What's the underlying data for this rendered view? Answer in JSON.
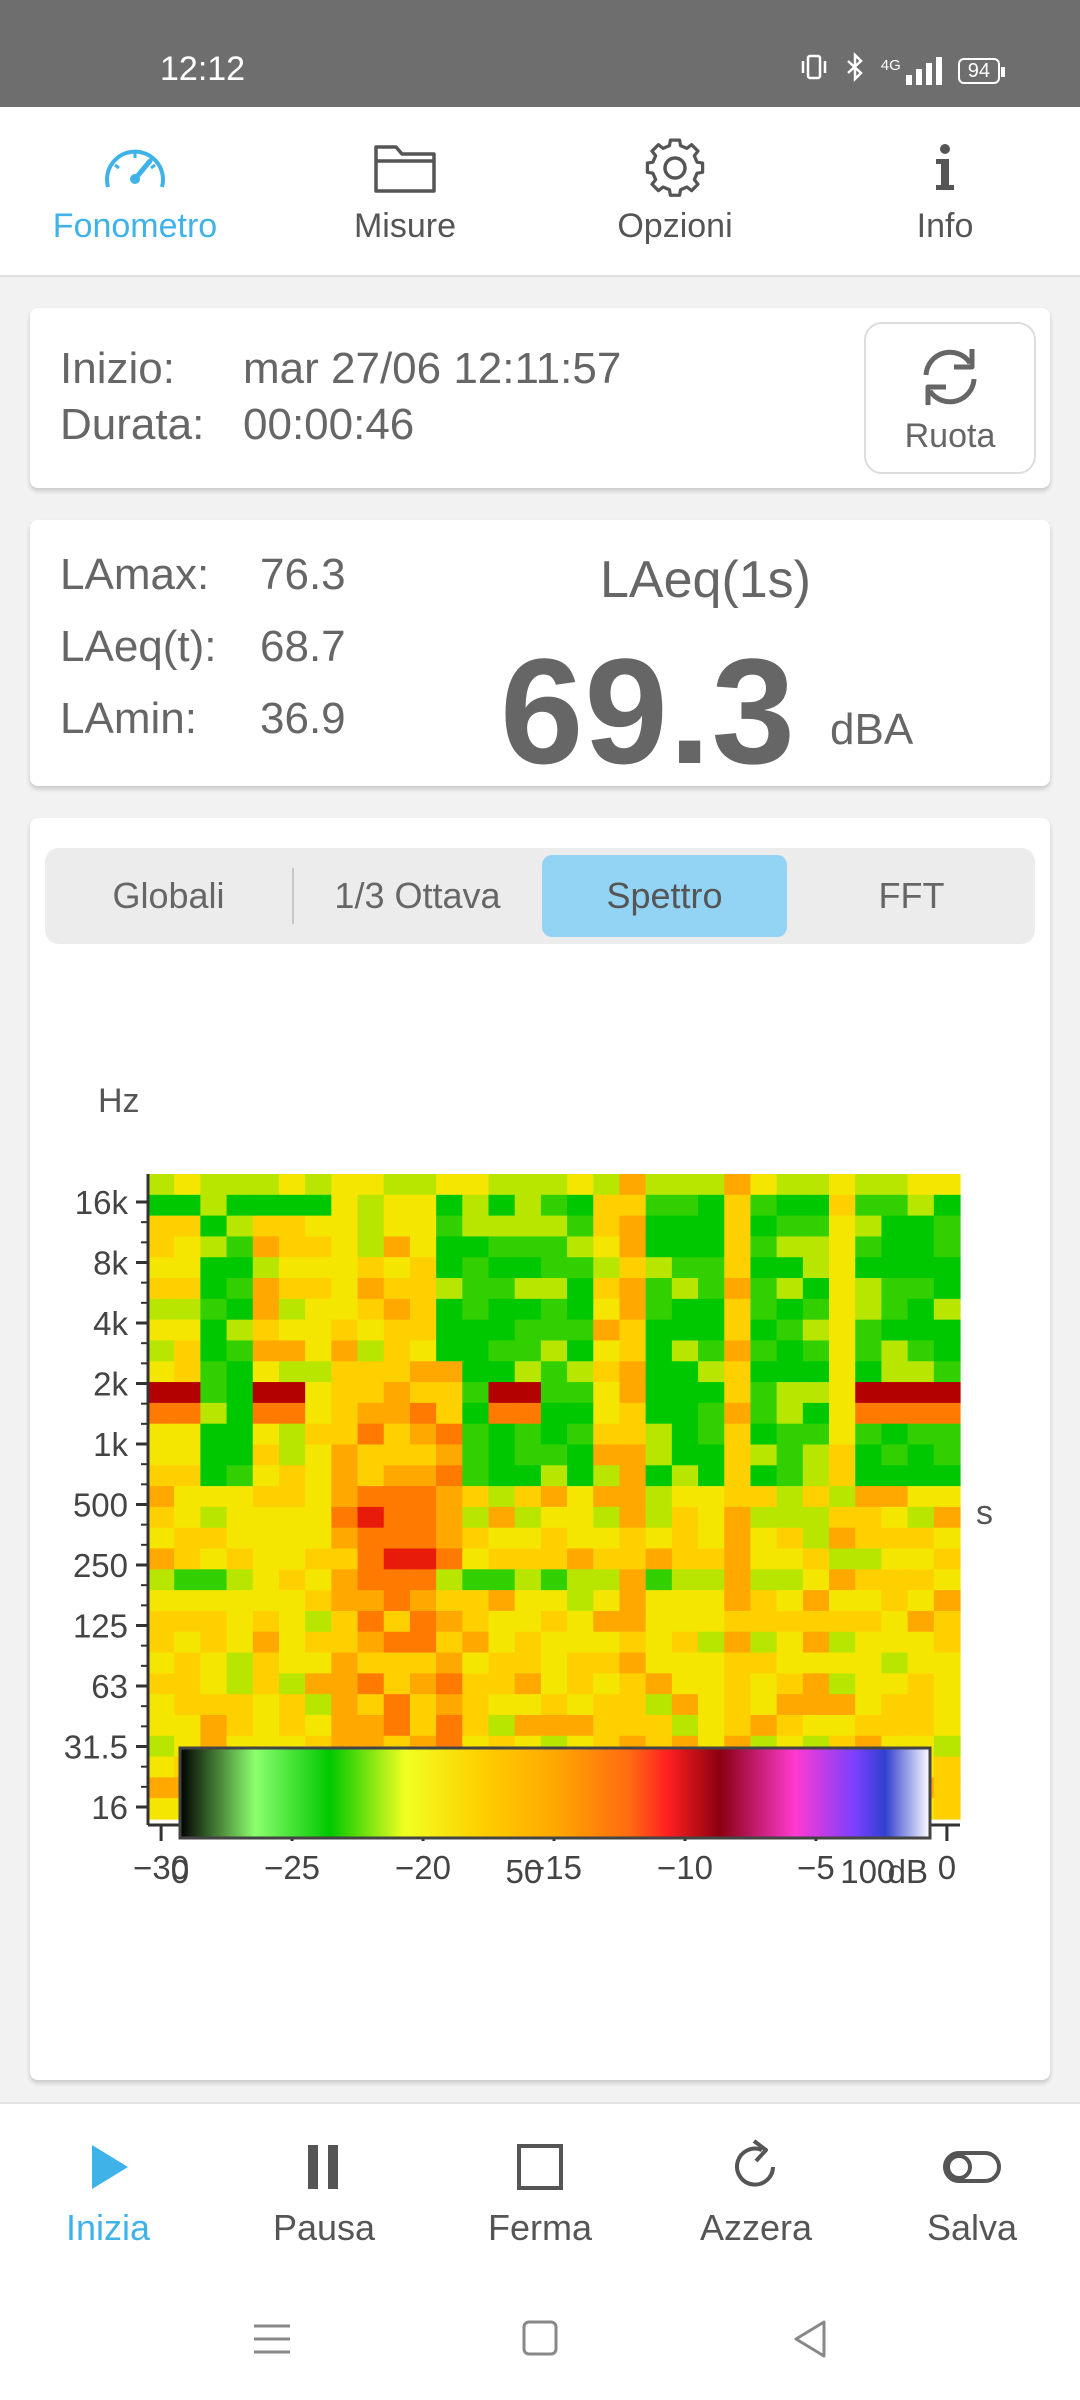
{
  "status": {
    "time": "12:12",
    "network": "4G",
    "battery": "94"
  },
  "top_tabs": [
    {
      "label": "Fonometro",
      "icon": "gauge-icon",
      "active": true
    },
    {
      "label": "Misure",
      "icon": "folder-icon",
      "active": false
    },
    {
      "label": "Opzioni",
      "icon": "gear-icon",
      "active": false
    },
    {
      "label": "Info",
      "icon": "info-icon",
      "active": false
    }
  ],
  "session": {
    "start_label": "Inizio:",
    "start_value": "mar 27/06 12:11:57",
    "duration_label": "Durata:",
    "duration_value": "00:00:46",
    "rotate_label": "Ruota"
  },
  "levels": {
    "lamax_label": "LAmax:",
    "lamax": "76.3",
    "laeq_t_label": "LAeq(t):",
    "laeq_t": "68.7",
    "lamin_label": "LAmin:",
    "lamin": "36.9",
    "laeq1s_title": "LAeq(1s)",
    "laeq1s_value": "69.3",
    "unit": "dBA"
  },
  "segments": [
    {
      "label": "Globali",
      "active": false
    },
    {
      "label": "1/3 Ottava",
      "active": false
    },
    {
      "label": "Spettro",
      "active": true
    },
    {
      "label": "FFT",
      "active": false
    }
  ],
  "chart_data": {
    "type": "heatmap",
    "title": "",
    "ylabel": "Hz",
    "xlabel": "s",
    "x_ticks": [
      "−30",
      "−25",
      "−20",
      "−15",
      "−10",
      "−5",
      "0"
    ],
    "x_tick_values": [
      -30,
      -25,
      -20,
      -15,
      -10,
      -5,
      0
    ],
    "xlim": [
      -30.5,
      0.5
    ],
    "y_ticks": [
      "16k",
      "8k",
      "4k",
      "2k",
      "1k",
      "500",
      "250",
      "125",
      "63",
      "31.5",
      "16"
    ],
    "y_scale": "log",
    "rows": 31,
    "cols": 31,
    "colorbar": {
      "min": 0,
      "max": 100,
      "ticks": [
        "0",
        "50",
        "100"
      ],
      "unit": "dB"
    },
    "colors": {
      "green_dark": "#00c800",
      "green": "#33d000",
      "yellow_green": "#b8e600",
      "yellow": "#f5e600",
      "yellow_orange": "#ffd000",
      "orange": "#ffa800",
      "orange_red": "#ff7a00",
      "red": "#e81a0a",
      "dark_red": "#b30000"
    },
    "regions": {
      "green_columns_high_freq": [
        [
          26,
          27
        ],
        [
          31,
          32
        ],
        [
          34,
          38
        ],
        [
          41,
          44
        ],
        [
          47,
          49
        ],
        [
          53,
          57
        ]
      ],
      "yellow_stripes": [
        44,
        50
      ],
      "loud_1khz_bands": [
        [
          -30,
          -28
        ],
        [
          -26,
          -25
        ],
        [
          -17,
          -16
        ],
        [
          -3,
          0
        ]
      ],
      "low_freq_hot_region": [
        [
          -24,
          -20
        ]
      ],
      "green_band_125hz": true
    }
  },
  "bottom_actions": [
    {
      "label": "Inizia",
      "icon": "play-icon",
      "active": true
    },
    {
      "label": "Pausa",
      "icon": "pause-icon",
      "active": false
    },
    {
      "label": "Ferma",
      "icon": "stop-icon",
      "active": false
    },
    {
      "label": "Azzera",
      "icon": "reset-icon",
      "active": false
    },
    {
      "label": "Salva",
      "icon": "toggle-icon",
      "active": false
    }
  ]
}
